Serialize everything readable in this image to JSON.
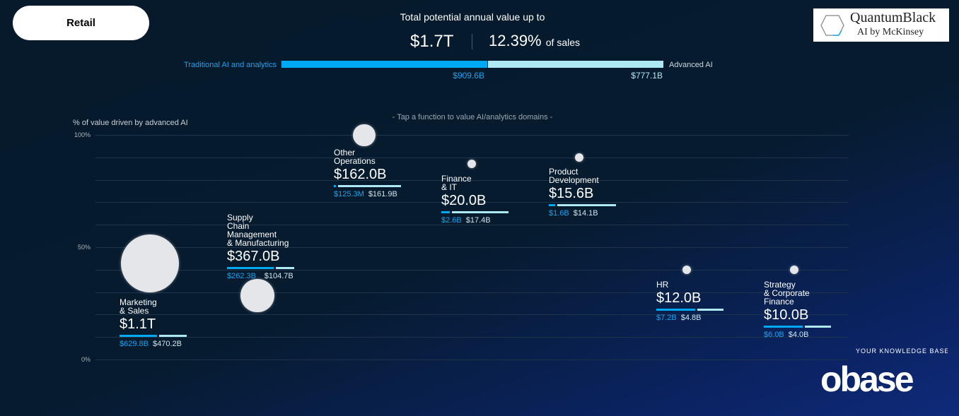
{
  "header": {
    "retail_button": "Retail",
    "title": "Total potential annual value up to",
    "total": "$1.7T",
    "percent": "12.39%",
    "percent_suffix": "of sales",
    "traditional_label": "Traditional AI and analytics",
    "advanced_label": "Advanced AI",
    "traditional_value": "$909.6B",
    "advanced_value": "$777.1B",
    "traditional_b": 909.6,
    "advanced_b": 777.1
  },
  "logos": {
    "quantumblack": "QuantumBlack",
    "quantumblack_sub": "AI by McKinsey",
    "obase": "obase",
    "obase_tag": "YOUR KNOWLEDGE BASE"
  },
  "colors": {
    "traditional": "#00a9f4",
    "advanced": "#aee8f2",
    "bg": "#061a2c"
  },
  "chart_data": {
    "type": "scatter",
    "title": "- Tap a function to value AI/analytics domains -",
    "ylabel": "% of value driven by advanced AI",
    "ylim": [
      0,
      100
    ],
    "yticks": [
      "100%",
      "50%",
      "0%"
    ],
    "functions": [
      {
        "name": "Marketing\n& Sales",
        "total": "$1.1T",
        "traditional": "$629.8B",
        "advanced": "$470.2B",
        "trad_b": 629.8,
        "adv_b": 470.2,
        "pct_advanced": 42.7
      },
      {
        "name": "Supply\nChain\nManagement\n& Manufacturing",
        "total": "$367.0B",
        "traditional": "$262.3B",
        "advanced": "$104.7B",
        "trad_b": 262.3,
        "adv_b": 104.7,
        "pct_advanced": 28.5
      },
      {
        "name": "Other\nOperations",
        "total": "$162.0B",
        "traditional": "$125.3M",
        "advanced": "$161.9B",
        "trad_b": 0.1253,
        "adv_b": 161.9,
        "pct_advanced": 99.9
      },
      {
        "name": "Finance\n& IT",
        "total": "$20.0B",
        "traditional": "$2.6B",
        "advanced": "$17.4B",
        "trad_b": 2.6,
        "adv_b": 17.4,
        "pct_advanced": 87
      },
      {
        "name": "Product\nDevelopment",
        "total": "$15.6B",
        "traditional": "$1.6B",
        "advanced": "$14.1B",
        "trad_b": 1.6,
        "adv_b": 14.1,
        "pct_advanced": 90
      },
      {
        "name": "HR",
        "total": "$12.0B",
        "traditional": "$7.2B",
        "advanced": "$4.8B",
        "trad_b": 7.2,
        "adv_b": 4.8,
        "pct_advanced": 40
      },
      {
        "name": "Strategy\n& Corporate\nFinance",
        "total": "$10.0B",
        "traditional": "$6.0B",
        "advanced": "$4.0B",
        "trad_b": 6.0,
        "adv_b": 4.0,
        "pct_advanced": 40
      }
    ]
  }
}
